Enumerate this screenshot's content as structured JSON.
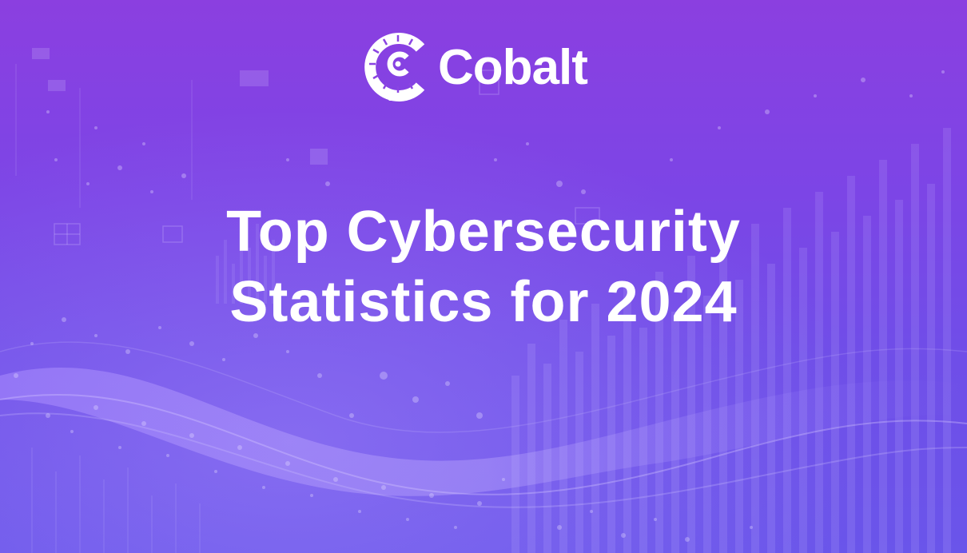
{
  "brand": {
    "name": "Cobalt",
    "icon": "cobalt-logo-icon"
  },
  "headline": {
    "line1": "Top Cybersecurity",
    "line2": "Statistics for 2024"
  },
  "colors": {
    "background_top": "#8b3fe0",
    "background_bottom": "#6a55ea",
    "text": "#ffffff"
  }
}
